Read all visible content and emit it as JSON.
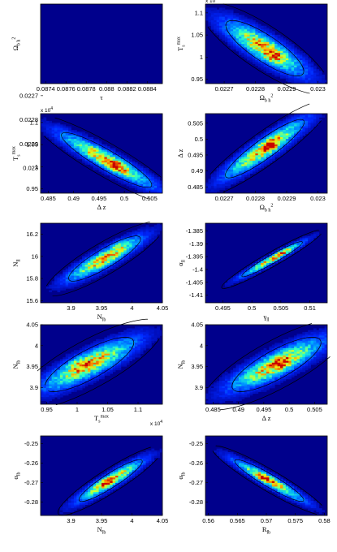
{
  "chart_data": [
    {
      "type": "heatmap",
      "xlabel": "τ",
      "ylabel": "Ω_b h^2",
      "xlim": [
        0.08735,
        0.08855
      ],
      "ylim": [
        0.02265,
        0.02232
      ],
      "xticks": [
        0.0874,
        0.0876,
        0.0878,
        0.088,
        0.0882,
        0.0884
      ],
      "xtick_labels": [
        "0.0874",
        "0.0876",
        "0.0878",
        "0.088",
        "0.0882",
        "0.0884"
      ],
      "yticks": [
        0.0227,
        0.0228,
        0.0229,
        0.023
      ],
      "ytick_labels": [
        "0.0227",
        "0.0228",
        "0.0229",
        "0.023"
      ],
      "center": [
        0.08795,
        0.02282
      ],
      "width": [
        0.00038,
        6.5e-05
      ],
      "correlation": 0.88,
      "peak": [
        0.08798,
        0.02282
      ]
    },
    {
      "type": "heatmap",
      "xlabel": "Ω_b h^2",
      "ylabel": "T_s^max",
      "y_multiplier": "x 10^4",
      "xlim": [
        0.02264,
        0.02303
      ],
      "ylim": [
        0.94,
        1.12
      ],
      "xticks": [
        0.0227,
        0.0228,
        0.0229,
        0.023
      ],
      "xtick_labels": [
        "0.0227",
        "0.0228",
        "0.0229",
        "0.023"
      ],
      "yticks": [
        0.95,
        1.0,
        1.05,
        1.1
      ],
      "ytick_labels": [
        "0.95",
        "1",
        "1.05",
        "1.1"
      ],
      "center": [
        0.02283,
        1.02
      ],
      "width": [
        8.5e-05,
        0.04
      ],
      "correlation": -0.85,
      "peak": [
        0.02285,
        1.0
      ]
    },
    {
      "type": "heatmap",
      "xlabel": "Δ z",
      "ylabel": "T_s^max",
      "y_multiplier": "x 10^4",
      "xlim": [
        0.4835,
        0.5075
      ],
      "ylim": [
        0.94,
        1.12
      ],
      "xticks": [
        0.485,
        0.49,
        0.495,
        0.5,
        0.505
      ],
      "xtick_labels": [
        "0.485",
        "0.49",
        "0.495",
        "0.5",
        "0.505"
      ],
      "yticks": [
        0.95,
        1.0,
        1.05,
        1.1
      ],
      "ytick_labels": [
        "0.95",
        "1",
        "1.05",
        "1.1"
      ],
      "center": [
        0.4965,
        1.015
      ],
      "width": [
        0.006,
        0.04
      ],
      "correlation": -0.93,
      "peak": [
        0.4985,
        1.0
      ]
    },
    {
      "type": "heatmap",
      "xlabel": "Ω_b h^2",
      "ylabel": "Δ z",
      "xlim": [
        0.02264,
        0.02303
      ],
      "ylim": [
        0.483,
        0.508
      ],
      "xticks": [
        0.0227,
        0.0228,
        0.0229,
        0.023
      ],
      "xtick_labels": [
        "0.0227",
        "0.0228",
        "0.0229",
        "0.023"
      ],
      "yticks": [
        0.485,
        0.49,
        0.495,
        0.5,
        0.505
      ],
      "ytick_labels": [
        "0.485",
        "0.49",
        "0.495",
        "0.5",
        "0.505"
      ],
      "center": [
        0.02283,
        0.497
      ],
      "width": [
        8.5e-05,
        0.006
      ],
      "correlation": 0.92,
      "peak": [
        0.02285,
        0.498
      ]
    },
    {
      "type": "heatmap",
      "xlabel": "N_lb",
      "ylabel": "N_ll",
      "xlim": [
        3.85,
        4.05
      ],
      "ylim": [
        15.58,
        16.3
      ],
      "xticks": [
        3.9,
        3.95,
        4.0,
        4.05
      ],
      "xtick_labels": [
        "3.9",
        "3.95",
        "4",
        "4.05"
      ],
      "yticks": [
        15.6,
        15.8,
        16.0,
        16.2
      ],
      "ytick_labels": [
        "15.6",
        "15.8",
        "16",
        "16.2"
      ],
      "center": [
        3.955,
        15.98
      ],
      "width": [
        0.04,
        0.13
      ],
      "correlation": 0.9,
      "peak": [
        3.98,
        16.12
      ]
    },
    {
      "type": "heatmap",
      "xlabel": "γ_ll",
      "ylabel": "α_ll",
      "xlim": [
        0.492,
        0.513
      ],
      "ylim": [
        -1.413,
        -1.382
      ],
      "xticks": [
        0.495,
        0.5,
        0.505,
        0.51
      ],
      "xtick_labels": [
        "0.495",
        "0.5",
        "0.505",
        "0.51"
      ],
      "yticks": [
        -1.385,
        -1.39,
        -1.395,
        -1.4,
        -1.405,
        -1.41
      ],
      "ytick_labels": [
        "-1.385",
        "-1.39",
        "-1.395",
        "-1.4",
        "-1.405",
        "-1.41"
      ],
      "center": [
        0.5035,
        -1.396
      ],
      "width": [
        0.0035,
        0.0045
      ],
      "correlation": 0.97,
      "peak": [
        0.505,
        -1.393
      ]
    },
    {
      "type": "heatmap",
      "xlabel": "T_s^max",
      "ylabel": "N_lb",
      "x_multiplier": "x 10^4",
      "xlim": [
        0.94,
        1.14
      ],
      "ylim": [
        3.86,
        4.05
      ],
      "xticks": [
        0.95,
        1.0,
        1.05,
        1.1
      ],
      "xtick_labels": [
        "0.95",
        "1",
        "1.05",
        "1.1"
      ],
      "yticks": [
        3.9,
        3.95,
        4.0,
        4.05
      ],
      "ytick_labels": [
        "3.9",
        "3.95",
        "4",
        "4.05"
      ],
      "center": [
        1.02,
        3.955
      ],
      "width": [
        0.05,
        0.04
      ],
      "correlation": 0.85,
      "peak": [
        1.0,
        3.96
      ]
    },
    {
      "type": "heatmap",
      "xlabel": "Δ z",
      "ylabel": "N_lb",
      "xlim": [
        0.4835,
        0.5075
      ],
      "ylim": [
        3.86,
        4.05
      ],
      "xticks": [
        0.485,
        0.49,
        0.495,
        0.5,
        0.505
      ],
      "xtick_labels": [
        "0.485",
        "0.49",
        "0.495",
        "0.5",
        "0.505"
      ],
      "yticks": [
        3.9,
        3.95,
        4.0,
        4.05
      ],
      "ytick_labels": [
        "3.9",
        "3.95",
        "4",
        "4.05"
      ],
      "center": [
        0.4975,
        3.955
      ],
      "width": [
        0.006,
        0.04
      ],
      "correlation": 0.85,
      "peak": [
        0.4985,
        3.96
      ]
    },
    {
      "type": "heatmap",
      "xlabel": "N_lb",
      "ylabel": "α_lb",
      "xlim": [
        3.85,
        4.05
      ],
      "ylim": [
        -0.287,
        -0.246
      ],
      "xticks": [
        3.9,
        3.95,
        4.0,
        4.05
      ],
      "xtick_labels": [
        "3.9",
        "3.95",
        "4",
        "4.05"
      ],
      "yticks": [
        -0.25,
        -0.26,
        -0.27,
        -0.28
      ],
      "ytick_labels": [
        "-0.25",
        "-0.26",
        "-0.27",
        "-0.28"
      ],
      "center": [
        3.965,
        -0.269
      ],
      "width": [
        0.035,
        0.007
      ],
      "correlation": 0.93,
      "peak": [
        3.955,
        -0.27
      ]
    },
    {
      "type": "heatmap",
      "xlabel": "R_lb",
      "ylabel": "α_lb",
      "xlim": [
        0.5595,
        0.5805
      ],
      "ylim": [
        -0.287,
        -0.246
      ],
      "xticks": [
        0.56,
        0.565,
        0.57,
        0.575,
        0.58
      ],
      "xtick_labels": [
        "0.56",
        "0.565",
        "0.57",
        "0.575",
        "0.58"
      ],
      "yticks": [
        -0.25,
        -0.26,
        -0.27,
        -0.28
      ],
      "ytick_labels": [
        "-0.25",
        "-0.26",
        "-0.27",
        "-0.28"
      ],
      "center": [
        0.5705,
        -0.269
      ],
      "width": [
        0.004,
        0.007
      ],
      "correlation": -0.95,
      "peak": [
        0.5695,
        -0.268
      ]
    }
  ]
}
